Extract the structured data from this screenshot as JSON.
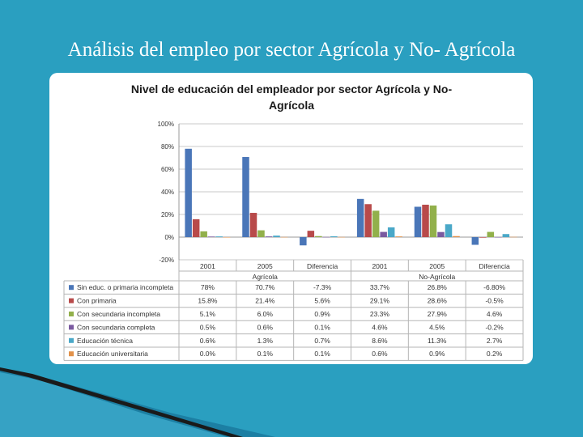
{
  "slide": {
    "title": "Análisis del empleo por sector Agrícola y No- Agrícola"
  },
  "colors": {
    "background": "#2a9fc0",
    "series": [
      "#4a76b8",
      "#b84a4a",
      "#92b04b",
      "#7a5aa0",
      "#4aa8c8",
      "#e2924a"
    ]
  },
  "chart_data": {
    "type": "bar",
    "title": "Nivel de educación del empleador por sector Agrícola y No- Agrícola",
    "title_lines": [
      "Nivel de educación del empleador por sector Agrícola y No-",
      "Agrícola"
    ],
    "categories": [
      "2001",
      "2005",
      "Diferencia",
      "2001",
      "2005",
      "Diferencia"
    ],
    "groups": [
      {
        "name": "Agrícola",
        "span": [
          0,
          2
        ]
      },
      {
        "name": "No-Agrícola",
        "span": [
          3,
          5
        ]
      }
    ],
    "ylim": [
      -20,
      100
    ],
    "yticks": [
      -20,
      0,
      20,
      40,
      60,
      80,
      100
    ],
    "ytick_labels": [
      "-20%",
      "0%",
      "20%",
      "40%",
      "60%",
      "80%",
      "100%"
    ],
    "grid": true,
    "legend": "data-table",
    "series": [
      {
        "name": "Sin educ. o primaria incompleta",
        "values": [
          78,
          70.7,
          -7.3,
          33.7,
          26.8,
          -6.8
        ],
        "labels": [
          "78%",
          "70.7%",
          "-7.3%",
          "33.7%",
          "26.8%",
          "-6.80%"
        ]
      },
      {
        "name": "Con primaria",
        "values": [
          15.8,
          21.4,
          5.6,
          29.1,
          28.6,
          -0.5
        ],
        "labels": [
          "15.8%",
          "21.4%",
          "5.6%",
          "29.1%",
          "28.6%",
          "-0.5%"
        ]
      },
      {
        "name": "Con secundaria incompleta",
        "values": [
          5.1,
          6.0,
          0.9,
          23.3,
          27.9,
          4.6
        ],
        "labels": [
          "5.1%",
          "6.0%",
          "0.9%",
          "23.3%",
          "27.9%",
          "4.6%"
        ]
      },
      {
        "name": "Con secundaria completa",
        "values": [
          0.5,
          0.6,
          0.1,
          4.6,
          4.5,
          -0.2
        ],
        "labels": [
          "0.5%",
          "0.6%",
          "0.1%",
          "4.6%",
          "4.5%",
          "-0.2%"
        ]
      },
      {
        "name": "Educación técnica",
        "values": [
          0.6,
          1.3,
          0.7,
          8.6,
          11.3,
          2.7
        ],
        "labels": [
          "0.6%",
          "1.3%",
          "0.7%",
          "8.6%",
          "11.3%",
          "2.7%"
        ]
      },
      {
        "name": "Educación universitaria",
        "values": [
          0.0,
          0.1,
          0.1,
          0.6,
          0.9,
          0.2
        ],
        "labels": [
          "0.0%",
          "0.1%",
          "0.1%",
          "0.6%",
          "0.9%",
          "0.2%"
        ]
      }
    ]
  }
}
